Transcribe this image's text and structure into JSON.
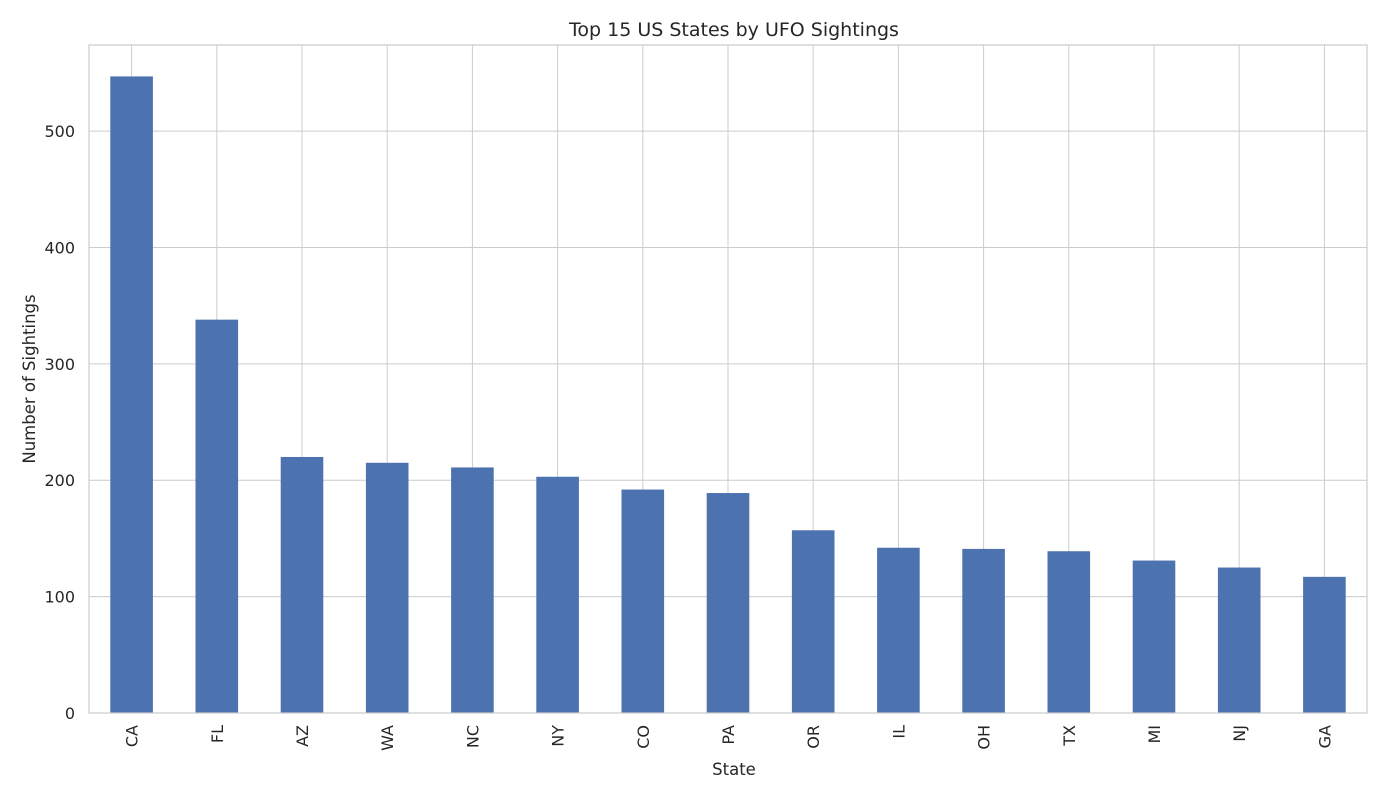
{
  "chart_data": {
    "type": "bar",
    "title": "Top 15 US States by UFO Sightings",
    "xlabel": "State",
    "ylabel": "Number of Sightings",
    "categories": [
      "CA",
      "FL",
      "AZ",
      "WA",
      "NC",
      "NY",
      "CO",
      "PA",
      "OR",
      "IL",
      "OH",
      "TX",
      "MI",
      "NJ",
      "GA"
    ],
    "values": [
      547,
      338,
      220,
      215,
      211,
      203,
      192,
      189,
      157,
      142,
      141,
      139,
      131,
      125,
      117
    ],
    "ylim": [
      0,
      574
    ],
    "yticks": [
      0,
      100,
      200,
      300,
      400,
      500
    ],
    "grid": true,
    "bar_color": "#4c72b0",
    "grid_color": "#cccccc",
    "x_tick_rotation": "vertical"
  }
}
